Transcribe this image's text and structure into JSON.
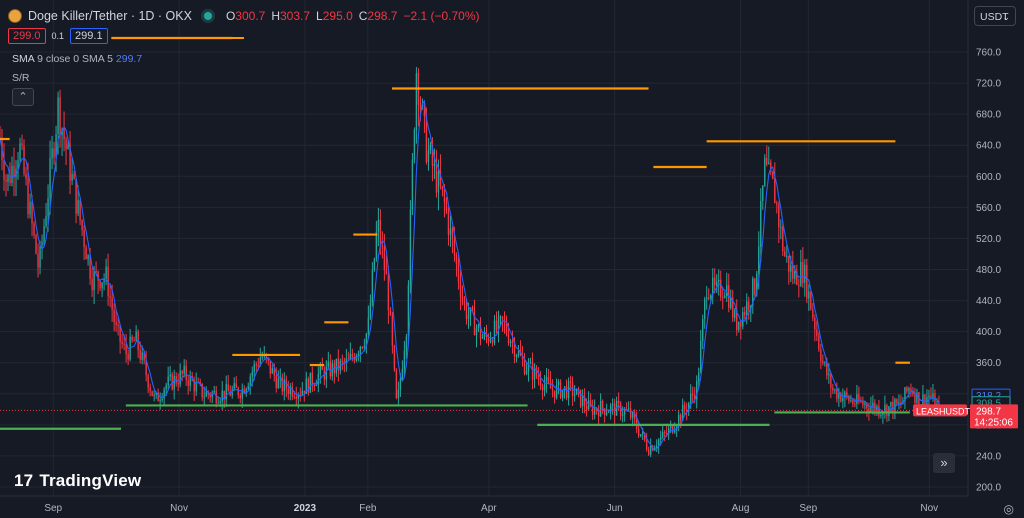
{
  "header": {
    "symbol": "Doge Killer/Tether · 1D · OKX",
    "ohlc": {
      "o_label": "O",
      "o": "300.7",
      "h_label": "H",
      "h": "303.7",
      "l_label": "L",
      "l": "295.0",
      "c_label": "C",
      "c": "298.7",
      "chg": "−2.1 (−0.70%)"
    },
    "bid": "299.0",
    "spread": "0.1",
    "ask": "299.1",
    "currency": "USDT"
  },
  "indicators": {
    "sma_name": "SMA",
    "sma_params": "9 close 0 SMA 5",
    "sma_value": "299.7",
    "sr_name": "S/R"
  },
  "price_labels": {
    "sma": "318.2",
    "sr": "308.5",
    "symbol_tag": "LEASHUSDT",
    "last": "298.7",
    "countdown": "14:25:06"
  },
  "branding": "TradingView",
  "colors": {
    "up": "#26a69a",
    "down": "#f23645",
    "sma": "#2962ff",
    "resistance": "#ff9800",
    "support": "#4caf50",
    "bg": "#161a25"
  },
  "chart_data": {
    "type": "candlestick",
    "y_axis_ticks": [
      "760.0",
      "720.0",
      "680.0",
      "640.0",
      "600.0",
      "560.0",
      "520.0",
      "480.0",
      "440.0",
      "400.0",
      "360.0",
      "320.0",
      "280.0",
      "240.0",
      "200.0"
    ],
    "ylim": [
      180,
      785
    ],
    "x_axis_ticks": [
      {
        "label": "Sep",
        "bold": false
      },
      {
        "label": "Nov",
        "bold": false
      },
      {
        "label": "2023",
        "bold": true
      },
      {
        "label": "Feb",
        "bold": false
      },
      {
        "label": "Apr",
        "bold": false
      },
      {
        "label": "Jun",
        "bold": false
      },
      {
        "label": "Aug",
        "bold": false
      },
      {
        "label": "Sep",
        "bold": false
      },
      {
        "label": "Nov",
        "bold": false
      }
    ],
    "price_path": [
      [
        0,
        650
      ],
      [
        0.7,
        590
      ],
      [
        2,
        640
      ],
      [
        4,
        480
      ],
      [
        6,
        690
      ],
      [
        8,
        560
      ],
      [
        9.5,
        470
      ],
      [
        11,
        470
      ],
      [
        12,
        400
      ],
      [
        13,
        372
      ],
      [
        14,
        390
      ],
      [
        16,
        310
      ],
      [
        17,
        330
      ],
      [
        19,
        345
      ],
      [
        21,
        320
      ],
      [
        23,
        320
      ],
      [
        25,
        325
      ],
      [
        27,
        370
      ],
      [
        29,
        330
      ],
      [
        31,
        324
      ],
      [
        33,
        345
      ],
      [
        36,
        360
      ],
      [
        38,
        400
      ],
      [
        39,
        540
      ],
      [
        40,
        460
      ],
      [
        41,
        300
      ],
      [
        42,
        410
      ],
      [
        43,
        740
      ],
      [
        44,
        640
      ],
      [
        46,
        560
      ],
      [
        48,
        430
      ],
      [
        50,
        390
      ],
      [
        52,
        410
      ],
      [
        54,
        360
      ],
      [
        57,
        325
      ],
      [
        59,
        325
      ],
      [
        61,
        300
      ],
      [
        62,
        302
      ],
      [
        64,
        300
      ],
      [
        65,
        295
      ],
      [
        67,
        250
      ],
      [
        69,
        270
      ],
      [
        71,
        305
      ],
      [
        72,
        330
      ],
      [
        73,
        460
      ],
      [
        74,
        450
      ],
      [
        75,
        460
      ],
      [
        76,
        410
      ],
      [
        77,
        430
      ],
      [
        78,
        460
      ],
      [
        79,
        610
      ],
      [
        80,
        580
      ],
      [
        81,
        500
      ],
      [
        82,
        470
      ],
      [
        83,
        480
      ],
      [
        84,
        420
      ],
      [
        85,
        360
      ],
      [
        86,
        325
      ],
      [
        88,
        310
      ],
      [
        90,
        305
      ],
      [
        91,
        300
      ],
      [
        93,
        305
      ],
      [
        94,
        330
      ],
      [
        95,
        310
      ],
      [
        96,
        318
      ],
      [
        97,
        299
      ]
    ],
    "sma_series": "SMA 5",
    "resistance_levels": [
      {
        "value": 648,
        "x0": 0,
        "x1": 1
      },
      {
        "value": 778,
        "x0": 11.5,
        "x1": 24
      },
      {
        "value": 713,
        "x0": 40.5,
        "x1": 67
      },
      {
        "value": 612,
        "x0": 67.5,
        "x1": 73
      },
      {
        "value": 645,
        "x0": 73,
        "x1": 92.5
      },
      {
        "value": 525,
        "x0": 36.5,
        "x1": 39
      },
      {
        "value": 370,
        "x0": 24,
        "x1": 31
      },
      {
        "value": 412,
        "x0": 33.5,
        "x1": 36
      },
      {
        "value": 357,
        "x0": 32,
        "x1": 33.5
      },
      {
        "value": 360,
        "x0": 92.5,
        "x1": 94
      }
    ],
    "support_levels": [
      {
        "value": 275,
        "x0": 0,
        "x1": 12.5
      },
      {
        "value": 305,
        "x0": 13,
        "x1": 54.5
      },
      {
        "value": 280,
        "x0": 55.5,
        "x1": 79.5
      },
      {
        "value": 296,
        "x0": 80,
        "x1": 94
      }
    ],
    "last_price": 298.7
  }
}
